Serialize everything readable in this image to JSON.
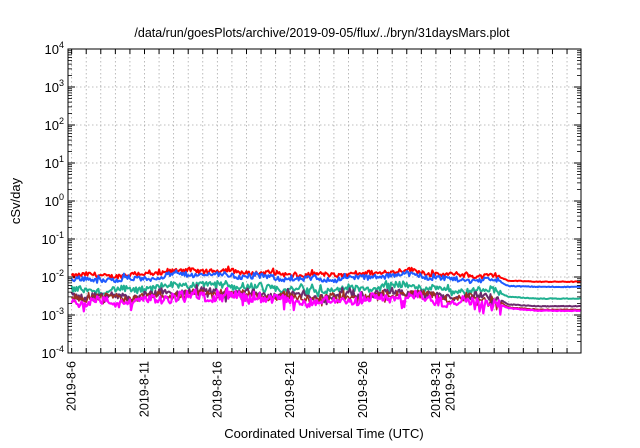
{
  "chart_data": {
    "type": "line",
    "title": "/data/run/goesPlots/archive/2019-09-05/flux/../bryn/31daysMars.plot",
    "xlabel": "Coordinated Universal Time (UTC)",
    "ylabel": "cSv/day",
    "yscale": "log",
    "ylim": [
      0.0001,
      10000
    ],
    "y_ticks": [
      {
        "value": 0.0001,
        "base": "10",
        "exp": "-4"
      },
      {
        "value": 0.001,
        "base": "10",
        "exp": "-3"
      },
      {
        "value": 0.01,
        "base": "10",
        "exp": "-2"
      },
      {
        "value": 0.1,
        "base": "10",
        "exp": "-1"
      },
      {
        "value": 1,
        "base": "10",
        "exp": "0"
      },
      {
        "value": 10,
        "base": "10",
        "exp": "1"
      },
      {
        "value": 100,
        "base": "10",
        "exp": "2"
      },
      {
        "value": 1000,
        "base": "10",
        "exp": "3"
      },
      {
        "value": 10000,
        "base": "10",
        "exp": "4"
      }
    ],
    "xlim": [
      "2019-08-05T18:00",
      "2019-09-09T23:00"
    ],
    "x_ticks": [
      "2019-8-6",
      "2019-8-11",
      "2019-8-16",
      "2019-8-21",
      "2019-8-26",
      "2019-8-31",
      "2019-9-1"
    ],
    "grid": true,
    "legend": "none",
    "series": [
      {
        "color": "#ff0000",
        "linewidth": 2,
        "noise": 0.55,
        "points": [
          [
            "2019-08-06",
            0.011
          ],
          [
            "2019-08-10",
            0.011
          ],
          [
            "2019-08-14",
            0.015
          ],
          [
            "2019-08-17",
            0.014
          ],
          [
            "2019-08-22",
            0.011
          ],
          [
            "2019-08-26",
            0.012
          ],
          [
            "2019-08-29",
            0.015
          ],
          [
            "2019-09-01",
            0.011
          ],
          [
            "2019-09-04",
            0.011
          ],
          [
            "2019-09-05",
            0.008
          ],
          [
            "2019-09-07",
            0.0075
          ],
          [
            "2019-09-09",
            0.0075
          ]
        ]
      },
      {
        "color": "#1f5bff",
        "linewidth": 2,
        "noise": 0.6,
        "points": [
          [
            "2019-08-06",
            0.0085
          ],
          [
            "2019-08-10",
            0.0085
          ],
          [
            "2019-08-14",
            0.012
          ],
          [
            "2019-08-17",
            0.011
          ],
          [
            "2019-08-22",
            0.0085
          ],
          [
            "2019-08-26",
            0.0095
          ],
          [
            "2019-08-29",
            0.012
          ],
          [
            "2019-09-01",
            0.0085
          ],
          [
            "2019-09-04",
            0.0085
          ],
          [
            "2019-09-05",
            0.0058
          ],
          [
            "2019-09-07",
            0.0055
          ],
          [
            "2019-09-09",
            0.0055
          ]
        ]
      },
      {
        "color": "#20b090",
        "linewidth": 2,
        "noise": 0.75,
        "points": [
          [
            "2019-08-06",
            0.0045
          ],
          [
            "2019-08-10",
            0.0045
          ],
          [
            "2019-08-14",
            0.0065
          ],
          [
            "2019-08-17",
            0.006
          ],
          [
            "2019-08-22",
            0.0045
          ],
          [
            "2019-08-26",
            0.005
          ],
          [
            "2019-08-29",
            0.0062
          ],
          [
            "2019-09-01",
            0.0045
          ],
          [
            "2019-09-04",
            0.0045
          ],
          [
            "2019-09-05",
            0.003
          ],
          [
            "2019-09-07",
            0.0027
          ],
          [
            "2019-09-09",
            0.0027
          ]
        ]
      },
      {
        "color": "#6b2a6b",
        "linewidth": 2,
        "noise": 0.8,
        "points": [
          [
            "2019-08-06",
            0.003
          ],
          [
            "2019-08-10",
            0.003
          ],
          [
            "2019-08-14",
            0.0042
          ],
          [
            "2019-08-17",
            0.004
          ],
          [
            "2019-08-22",
            0.003
          ],
          [
            "2019-08-26",
            0.0033
          ],
          [
            "2019-08-29",
            0.0042
          ],
          [
            "2019-09-01",
            0.003
          ],
          [
            "2019-09-04",
            0.003
          ],
          [
            "2019-09-05",
            0.0019
          ],
          [
            "2019-09-07",
            0.0017
          ],
          [
            "2019-09-09",
            0.0017
          ]
        ]
      },
      {
        "color": "#a03020",
        "linewidth": 1.5,
        "noise": 0.8,
        "points": [
          [
            "2019-08-06",
            0.0028
          ],
          [
            "2019-08-10",
            0.0028
          ],
          [
            "2019-08-14",
            0.0038
          ],
          [
            "2019-08-17",
            0.0036
          ],
          [
            "2019-08-22",
            0.0028
          ],
          [
            "2019-08-26",
            0.003
          ],
          [
            "2019-08-29",
            0.0038
          ],
          [
            "2019-09-01",
            0.0028
          ],
          [
            "2019-09-04",
            0.0028
          ],
          [
            "2019-09-05",
            0.0016
          ],
          [
            "2019-09-07",
            0.0014
          ],
          [
            "2019-09-09",
            0.0014
          ]
        ]
      },
      {
        "color": "#ff00ff",
        "linewidth": 2.2,
        "noise": 1.0,
        "points": [
          [
            "2019-08-06",
            0.0022
          ],
          [
            "2019-08-10",
            0.0022
          ],
          [
            "2019-08-14",
            0.0032
          ],
          [
            "2019-08-17",
            0.003
          ],
          [
            "2019-08-22",
            0.0022
          ],
          [
            "2019-08-26",
            0.0025
          ],
          [
            "2019-08-29",
            0.0031
          ],
          [
            "2019-09-01",
            0.0022
          ],
          [
            "2019-09-04",
            0.0022
          ],
          [
            "2019-09-05",
            0.0015
          ],
          [
            "2019-09-07",
            0.0013
          ],
          [
            "2019-09-09",
            0.0013
          ]
        ]
      }
    ]
  }
}
